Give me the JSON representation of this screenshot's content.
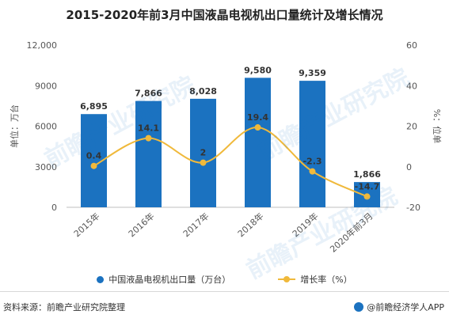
{
  "title": "2015-2020年前3月中国液晶电视机出口量统计及增长情况",
  "source": "资料来源：前瞻产业研究院整理",
  "credit": "@前瞻经济学人APP",
  "watermark": "前瞻产业研究院",
  "colors": {
    "bar": "#1b72c0",
    "line": "#f0b93b"
  },
  "chart_data": {
    "type": "bar",
    "categories": [
      "2015年",
      "2016年",
      "2017年",
      "2018年",
      "2019年",
      "2020年前3月"
    ],
    "series": [
      {
        "name": "中国液晶电视机出口量（万台）",
        "type": "bar",
        "axis": "left",
        "values": [
          6895,
          7866,
          8028,
          9580,
          9359,
          1866
        ],
        "labels": [
          "6,895",
          "7,866",
          "8,028",
          "9,580",
          "9,359",
          "1,866"
        ]
      },
      {
        "name": "增长率（%）",
        "type": "line",
        "axis": "right",
        "values": [
          0.4,
          14.1,
          2,
          19.4,
          -2.3,
          -14.7
        ],
        "labels": [
          "0.4",
          "14.1",
          "2",
          "19.4",
          "-2.3",
          "-14.7"
        ]
      }
    ],
    "ylabel": "单位：万台",
    "y2label": "%：位单",
    "ylim": [
      0,
      12000
    ],
    "y2lim": [
      -20,
      60
    ],
    "yticks": [
      "0",
      "3000",
      "6000",
      "9000",
      "12,000"
    ],
    "y2ticks": [
      "-20",
      "0",
      "20",
      "40",
      "60"
    ],
    "legend_position": "bottom",
    "grid": false
  }
}
